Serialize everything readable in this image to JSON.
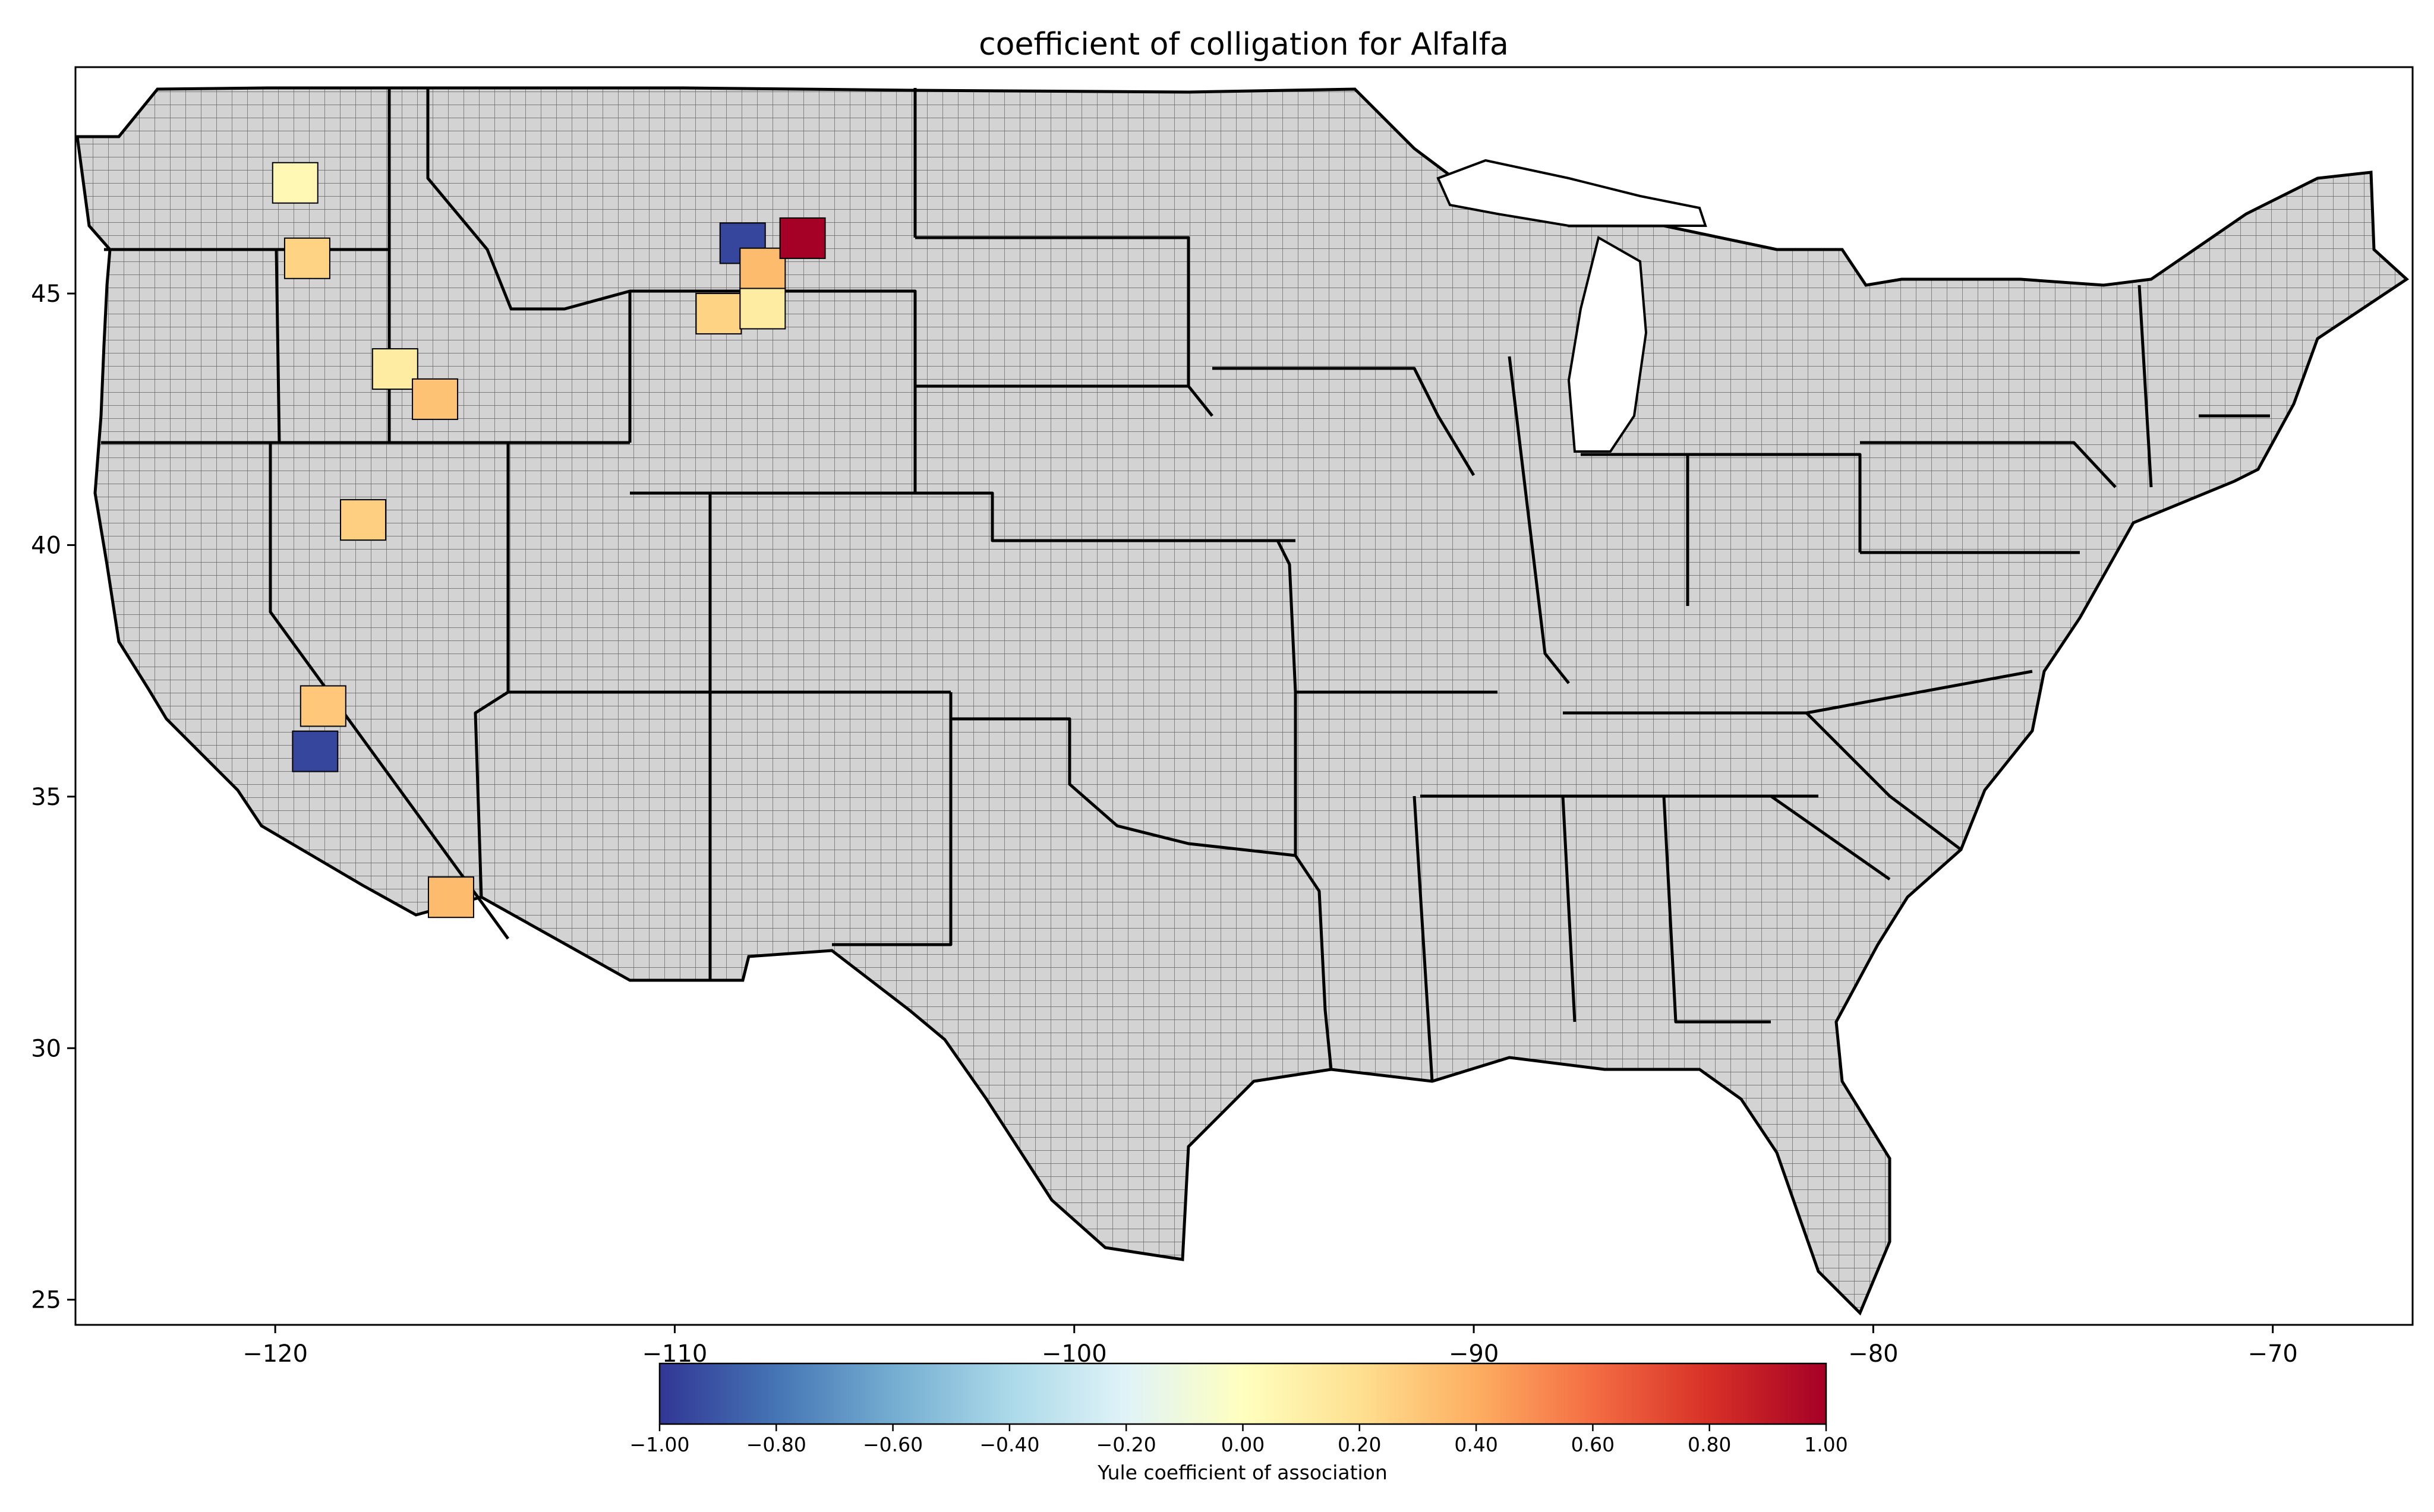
{
  "map": {
    "title": "coefficient of colligation for Alfalfa",
    "x_axis": {
      "range": [
        -125,
        -66.5
      ],
      "ticks": [
        -120,
        -110,
        -100,
        -90,
        -80,
        -70
      ],
      "tick_labels": [
        "−120",
        "−110",
        "−100",
        "−90",
        "−80",
        "−70"
      ]
    },
    "y_axis": {
      "range": [
        24.5,
        49.5
      ],
      "ticks": [
        25,
        30,
        35,
        40,
        45
      ],
      "tick_labels": [
        "25",
        "30",
        "35",
        "40",
        "45"
      ]
    },
    "base_fill": "#d3d3d3",
    "border_color": "#000000",
    "colorbar": {
      "label": "Yule coefficient of association",
      "range": [
        -1.0,
        1.0
      ],
      "ticks": [
        -1.0,
        -0.8,
        -0.6,
        -0.4,
        -0.2,
        0.0,
        0.2,
        0.4,
        0.6,
        0.8,
        1.0
      ],
      "tick_labels": [
        "−1.00",
        "−0.80",
        "−0.60",
        "−0.40",
        "−0.20",
        "0.00",
        "0.20",
        "0.40",
        "0.60",
        "0.80",
        "1.00"
      ],
      "colormap": "RdYlBu_r",
      "stops": [
        "#313695",
        "#4575b4",
        "#74add1",
        "#abd9e9",
        "#e0f3f8",
        "#ffffbf",
        "#fee090",
        "#fdae61",
        "#f46d43",
        "#d73027",
        "#a50026"
      ]
    },
    "highlighted_counties": [
      {
        "value": 0.05,
        "lon": -119.5,
        "lat": 47.2
      },
      {
        "value": 0.25,
        "lon": -119.2,
        "lat": 45.7
      },
      {
        "value": 0.12,
        "lon": -117.0,
        "lat": 43.5
      },
      {
        "value": 0.32,
        "lon": -116.0,
        "lat": 42.9
      },
      {
        "value": 0.27,
        "lon": -117.8,
        "lat": 40.5
      },
      {
        "value": 0.3,
        "lon": -118.8,
        "lat": 36.8
      },
      {
        "value": -0.95,
        "lon": -119.0,
        "lat": 35.9
      },
      {
        "value": 0.35,
        "lon": -115.6,
        "lat": 33.0
      },
      {
        "value": -0.95,
        "lon": -108.3,
        "lat": 46.0
      },
      {
        "value": 0.35,
        "lon": -107.8,
        "lat": 45.5
      },
      {
        "value": 1.0,
        "lon": -106.8,
        "lat": 46.1
      },
      {
        "value": 0.25,
        "lon": -108.9,
        "lat": 44.6
      },
      {
        "value": 0.12,
        "lon": -107.8,
        "lat": 44.7
      }
    ]
  }
}
